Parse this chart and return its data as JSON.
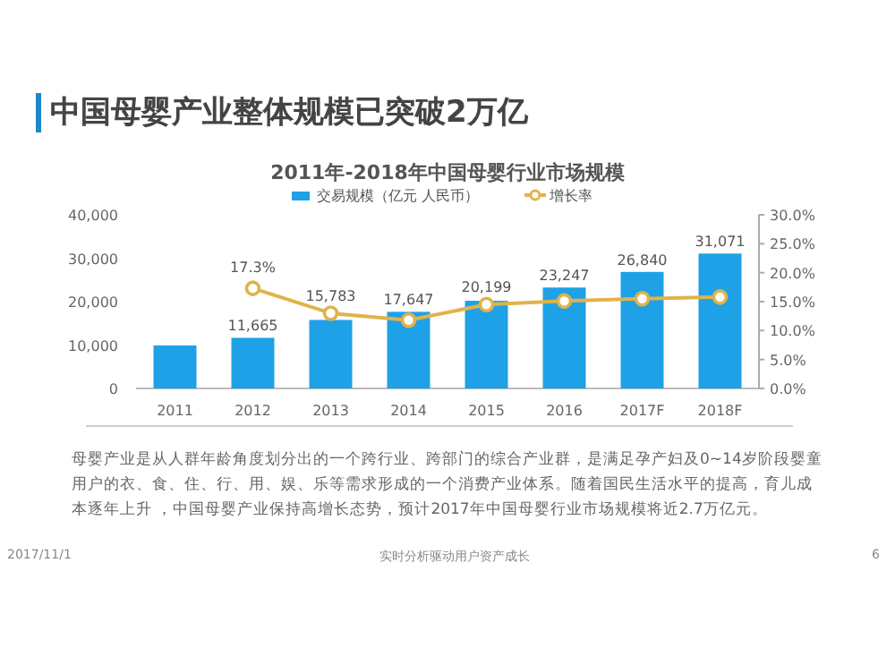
{
  "chart_data": {
    "type": "bar",
    "title": "中国母婴产业整体规模已突破2万亿",
    "subtitle": "2011年-2018年中国母婴行业市场规模",
    "categories": [
      "2011",
      "2012",
      "2013",
      "2014",
      "2015",
      "2016",
      "2017F",
      "2018F"
    ],
    "series": [
      {
        "name": "交易规模（亿元 人民币）",
        "color": "#1ea1e6",
        "values": [
          9900,
          11665,
          15783,
          17647,
          20199,
          23247,
          26840,
          31071
        ],
        "value_labels": [
          null,
          "11,665",
          "15,783",
          "17,647",
          "20,199",
          "23,247",
          "26,840",
          "31,071"
        ]
      },
      {
        "name": "增长率",
        "type": "line",
        "axis": "y2",
        "color": "#e0b34a",
        "marker": "circle",
        "values": [
          null,
          17.3,
          13.0,
          11.8,
          14.5,
          15.1,
          15.5,
          15.8
        ],
        "value_labels": [
          null,
          "17.3%",
          null,
          null,
          null,
          null,
          null,
          null
        ]
      }
    ],
    "ylim": [
      0,
      40000
    ],
    "yticks": [
      0,
      {
        "value": 10000,
        "label": "10,000"
      },
      {
        "value": 20000,
        "label": "20,000"
      },
      {
        "value": 30000,
        "label": "30,000"
      },
      {
        "value": 40000,
        "label": "40,000"
      }
    ],
    "y2lim": [
      0,
      30
    ],
    "y2ticks": [
      {
        "value": 0,
        "label": "0.0%"
      },
      {
        "value": 5,
        "label": "5.0%"
      },
      {
        "value": 10,
        "label": "10.0%"
      },
      {
        "value": 15,
        "label": "15.0%"
      },
      {
        "value": 20,
        "label": "20.0%"
      },
      {
        "value": 25,
        "label": "25.0%"
      },
      {
        "value": 30,
        "label": "30.0%"
      }
    ],
    "legend": "top",
    "grid": false,
    "annotations": [
      "母婴产业是从人群年龄角度划分出的一个跨行业、跨部门的综合产业群，是满足孕产妇及0~14岁阶段婴童用户的衣、食、住、行、用、娱、乐等需求形成的一个消费产业体系。随着国民生活水平的提高，育儿成本逐年上升 ，中国母婴产业保持高增长态势，预计2017年中国母婴行业市场规模将近2.7万亿元。",
      "2017/11/1",
      "实时分析驱动用户资产成长",
      "6"
    ]
  }
}
